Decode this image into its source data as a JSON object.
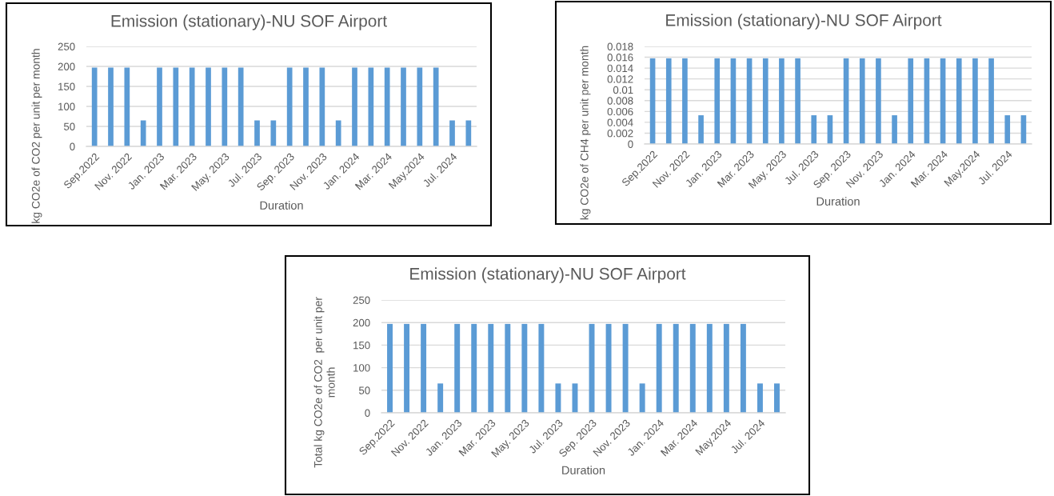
{
  "chart_data": [
    {
      "type": "bar",
      "title": "Emission (stationary)-NU SOF Airport",
      "xlabel": "Duration",
      "ylabel": "kg CO2e of CO2 per unit per month",
      "categories": [
        "Sep.2022",
        null,
        "Nov. 2022",
        null,
        "Jan. 2023",
        null,
        "Mar. 2023",
        null,
        "May. 2023",
        null,
        "Jul. 2023",
        null,
        "Sep. 2023",
        null,
        "Nov. 2023",
        null,
        "Jan. 2024",
        null,
        "Mar. 2024",
        null,
        "May.2024",
        null,
        "Jul. 2024",
        null
      ],
      "values": [
        197,
        197,
        197,
        65,
        197,
        197,
        197,
        197,
        197,
        197,
        65,
        65,
        197,
        197,
        197,
        65,
        197,
        197,
        197,
        197,
        197,
        197,
        65,
        65
      ],
      "color": "#5b9bd5",
      "ylim": [
        0,
        250
      ],
      "yticks": [
        0,
        50,
        100,
        150,
        200,
        250
      ],
      "grid": "y"
    },
    {
      "type": "bar",
      "title": "Emission (stationary)-NU SOF Airport",
      "xlabel": "Duration",
      "ylabel": "kg CO2e of CH4 per unit per month",
      "categories": [
        "Sep.2022",
        null,
        "Nov. 2022",
        null,
        "Jan. 2023",
        null,
        "Mar. 2023",
        null,
        "May. 2023",
        null,
        "Jul. 2023",
        null,
        "Sep. 2023",
        null,
        "Nov. 2023",
        null,
        "Jan. 2024",
        null,
        "Mar. 2024",
        null,
        "May.2024",
        null,
        "Jul. 2024",
        null
      ],
      "values": [
        0.0158,
        0.0158,
        0.0158,
        0.0053,
        0.0158,
        0.0158,
        0.0158,
        0.0158,
        0.0158,
        0.0158,
        0.0053,
        0.0053,
        0.0158,
        0.0158,
        0.0158,
        0.0053,
        0.0158,
        0.0158,
        0.0158,
        0.0158,
        0.0158,
        0.0158,
        0.0053,
        0.0053
      ],
      "color": "#5b9bd5",
      "ylim": [
        0,
        0.018
      ],
      "yticks": [
        0,
        0.002,
        0.004,
        0.006,
        0.008,
        0.01,
        0.012,
        0.014,
        0.016,
        0.018
      ],
      "grid": "y"
    },
    {
      "type": "bar",
      "title": "Emission (stationary)-NU SOF Airport",
      "xlabel": "Duration",
      "ylabel": "Total kg CO2e of CO2  per unit per\nmonth",
      "categories": [
        "Sep.2022",
        null,
        "Nov. 2022",
        null,
        "Jan. 2023",
        null,
        "Mar. 2023",
        null,
        "May. 2023",
        null,
        "Jul. 2023",
        null,
        "Sep. 2023",
        null,
        "Nov. 2023",
        null,
        "Jan. 2024",
        null,
        "Mar. 2024",
        null,
        "May.2024",
        null,
        "Jul. 2024",
        null
      ],
      "values": [
        197,
        197,
        197,
        65,
        197,
        197,
        197,
        197,
        197,
        197,
        65,
        65,
        197,
        197,
        197,
        65,
        197,
        197,
        197,
        197,
        197,
        197,
        65,
        65
      ],
      "color": "#5b9bd5",
      "ylim": [
        0,
        250
      ],
      "yticks": [
        0,
        50,
        100,
        150,
        200,
        250
      ],
      "grid": "y"
    }
  ]
}
